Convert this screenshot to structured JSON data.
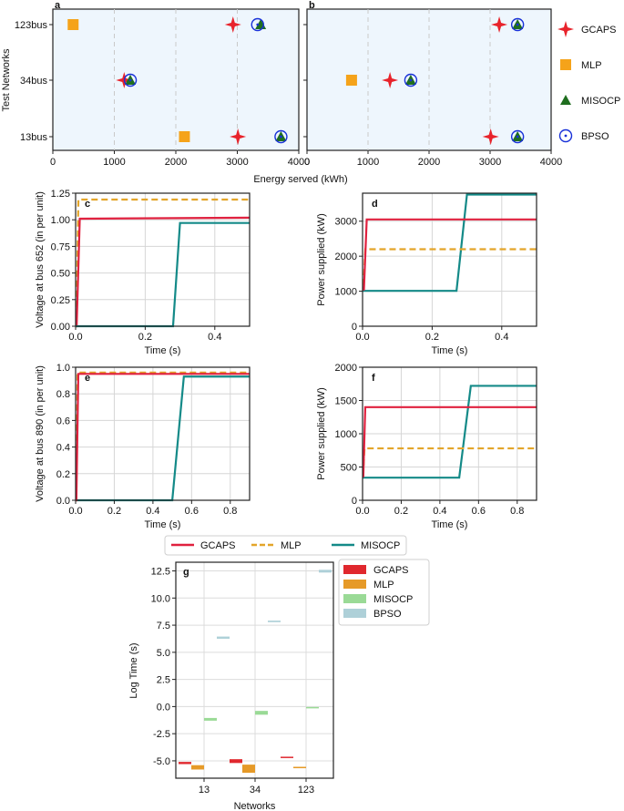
{
  "chart_data": [
    {
      "id": "a",
      "panel_label": "a",
      "type": "scatter",
      "title": "",
      "xlabel": "Energy served (kWh)",
      "ylabel": "Test Networks",
      "xlim": [
        0,
        4000
      ],
      "xticks": [
        "0",
        "1000",
        "2000",
        "3000",
        "4000"
      ],
      "categories": [
        "13bus",
        "34bus",
        "123bus"
      ],
      "series": [
        {
          "name": "GCAPS",
          "marker": "star4",
          "color": "#e8232b",
          "x": [
            3010,
            1160,
            2930
          ]
        },
        {
          "name": "MLP",
          "marker": "square",
          "color": "#f5a31a",
          "x": [
            2140,
            null,
            330
          ]
        },
        {
          "name": "MISOCP",
          "marker": "triangle",
          "color": "#1f6e1f",
          "x": [
            3710,
            1260,
            3380
          ]
        },
        {
          "name": "BPSO",
          "marker": "circle-dot",
          "color": "#1730d8",
          "x": [
            3710,
            1260,
            3330
          ]
        }
      ]
    },
    {
      "id": "b",
      "panel_label": "b",
      "type": "scatter",
      "title": "",
      "xlabel": "Energy served (kWh)",
      "xlim": [
        0,
        4000
      ],
      "xticks": [
        "0",
        "1000",
        "2000",
        "3000",
        "4000"
      ],
      "categories": [
        "13bus",
        "34bus",
        "123bus"
      ],
      "series": [
        {
          "name": "GCAPS",
          "marker": "star4",
          "color": "#e8232b",
          "x": [
            3010,
            1360,
            3150
          ]
        },
        {
          "name": "MLP",
          "marker": "square",
          "color": "#f5a31a",
          "x": [
            null,
            730,
            null
          ]
        },
        {
          "name": "MISOCP",
          "marker": "triangle",
          "color": "#1f6e1f",
          "x": [
            3450,
            1700,
            3450
          ]
        },
        {
          "name": "BPSO",
          "marker": "circle-dot",
          "color": "#1730d8",
          "x": [
            3450,
            1700,
            3450
          ]
        }
      ]
    },
    {
      "id": "c",
      "panel_label": "c",
      "type": "line",
      "xlabel": "Time (s)",
      "ylabel": "Voltage at bus 652 (in per unit)",
      "xlim": [
        0,
        0.5
      ],
      "ylim": [
        0,
        1.25
      ],
      "xticks": [
        0,
        0.2,
        0.4
      ],
      "xtick_labels": [
        "0.0",
        "0.2",
        "0.4"
      ],
      "yticks": [
        0,
        0.25,
        0.5,
        0.75,
        1.0,
        1.25
      ],
      "ytick_labels": [
        "0.00",
        "0.25",
        "0.50",
        "0.75",
        "1.00",
        "1.25"
      ],
      "series": [
        {
          "name": "MLP",
          "style": "dashed",
          "color": "#e3a52a",
          "x": [
            0,
            0.002,
            0.008,
            0.5
          ],
          "y": [
            0,
            0,
            1.19,
            1.19
          ]
        },
        {
          "name": "GCAPS",
          "style": "solid",
          "color": "#e0213f",
          "x": [
            0,
            0.003,
            0.012,
            0.5
          ],
          "y": [
            0,
            0,
            1.01,
            1.02
          ]
        },
        {
          "name": "MISOCP",
          "style": "solid",
          "color": "#148a88",
          "x": [
            0,
            0.28,
            0.3,
            0.5
          ],
          "y": [
            0,
            0,
            0.97,
            0.97
          ]
        }
      ]
    },
    {
      "id": "d",
      "panel_label": "d",
      "type": "line",
      "xlabel": "Time (s)",
      "ylabel": "Power supplied (kW)",
      "xlim": [
        0,
        0.5
      ],
      "ylim": [
        0,
        3800
      ],
      "xticks": [
        0,
        0.2,
        0.4
      ],
      "xtick_labels": [
        "0.0",
        "0.2",
        "0.4"
      ],
      "yticks": [
        0,
        1000,
        2000,
        3000
      ],
      "ytick_labels": [
        "0",
        "1000",
        "2000",
        "3000"
      ],
      "series": [
        {
          "name": "MISOCP",
          "style": "solid",
          "color": "#148a88",
          "x": [
            0,
            0.27,
            0.3,
            0.5
          ],
          "y": [
            1010,
            1010,
            3760,
            3760
          ]
        },
        {
          "name": "MLP",
          "style": "dashed",
          "color": "#e3a52a",
          "x": [
            0,
            0.003,
            0.008,
            0.5
          ],
          "y": [
            1200,
            1200,
            2200,
            2200
          ]
        },
        {
          "name": "GCAPS",
          "style": "solid",
          "color": "#e0213f",
          "x": [
            0,
            0.004,
            0.012,
            0.5
          ],
          "y": [
            1050,
            1050,
            3050,
            3050
          ]
        }
      ]
    },
    {
      "id": "e",
      "panel_label": "e",
      "type": "line",
      "xlabel": "Time (s)",
      "ylabel": "Voltage at bus 890 (in per unit)",
      "xlim": [
        0,
        0.9
      ],
      "ylim": [
        0,
        1.0
      ],
      "xticks": [
        0,
        0.2,
        0.4,
        0.6,
        0.8
      ],
      "xtick_labels": [
        "0.0",
        "0.2",
        "0.4",
        "0.6",
        "0.8"
      ],
      "yticks": [
        0,
        0.2,
        0.4,
        0.6,
        0.8,
        1.0
      ],
      "ytick_labels": [
        "0.0",
        "0.2",
        "0.4",
        "0.6",
        "0.8",
        "1.0"
      ],
      "series": [
        {
          "name": "MISOCP",
          "style": "solid",
          "color": "#148a88",
          "x": [
            0,
            0.5,
            0.56,
            0.9
          ],
          "y": [
            0,
            0,
            0.93,
            0.93
          ]
        },
        {
          "name": "MLP",
          "style": "dashed",
          "color": "#e3a52a",
          "x": [
            0,
            0.003,
            0.01,
            0.9
          ],
          "y": [
            0,
            0,
            0.96,
            0.96
          ]
        },
        {
          "name": "GCAPS",
          "style": "solid",
          "color": "#e0213f",
          "x": [
            0,
            0.004,
            0.014,
            0.9
          ],
          "y": [
            0,
            0,
            0.95,
            0.95
          ]
        }
      ]
    },
    {
      "id": "f",
      "panel_label": "f",
      "type": "line",
      "xlabel": "Time (s)",
      "ylabel": "Power supplied (kW)",
      "xlim": [
        0,
        0.9
      ],
      "ylim": [
        0,
        2000
      ],
      "xticks": [
        0,
        0.2,
        0.4,
        0.6,
        0.8
      ],
      "xtick_labels": [
        "0.0",
        "0.2",
        "0.4",
        "0.6",
        "0.8"
      ],
      "yticks": [
        0,
        500,
        1000,
        1500,
        2000
      ],
      "ytick_labels": [
        "0",
        "500",
        "1000",
        "1500",
        "2000"
      ],
      "series": [
        {
          "name": "MISOCP",
          "style": "solid",
          "color": "#148a88",
          "x": [
            0,
            0.5,
            0.56,
            0.9
          ],
          "y": [
            340,
            340,
            1720,
            1720
          ]
        },
        {
          "name": "MLP",
          "style": "dashed",
          "color": "#e3a52a",
          "x": [
            0,
            0.003,
            0.01,
            0.9
          ],
          "y": [
            380,
            380,
            780,
            780
          ]
        },
        {
          "name": "GCAPS",
          "style": "solid",
          "color": "#e0213f",
          "x": [
            0,
            0.004,
            0.014,
            0.9
          ],
          "y": [
            360,
            360,
            1400,
            1400
          ]
        }
      ]
    },
    {
      "id": "g",
      "panel_label": "g",
      "type": "box",
      "xlabel": "Networks",
      "ylabel": "Log Time (s)",
      "categories": [
        "13",
        "34",
        "123"
      ],
      "ylim": [
        -6.6,
        13.3
      ],
      "yticks": [
        -5.0,
        -2.5,
        0.0,
        2.5,
        5.0,
        7.5,
        10.0,
        12.5
      ],
      "ytick_labels": [
        "-5.0",
        "-2.5",
        "0.0",
        "2.5",
        "5.0",
        "7.5",
        "10.0",
        "12.5"
      ],
      "series": [
        {
          "name": "GCAPS",
          "color": "#e0282e",
          "values": [
            [
              -5.3,
              -5.1
            ],
            [
              -5.2,
              -4.85
            ],
            [
              -4.72,
              -4.62
            ]
          ]
        },
        {
          "name": "MLP",
          "color": "#e69a28",
          "values": [
            [
              -5.8,
              -5.4
            ],
            [
              -6.1,
              -5.35
            ],
            [
              -5.68,
              -5.55
            ]
          ]
        },
        {
          "name": "MISOCP",
          "color": "#9ada96",
          "values": [
            [
              -1.3,
              -1.05
            ],
            [
              -0.75,
              -0.4
            ],
            [
              -0.12,
              -0.04
            ]
          ]
        },
        {
          "name": "BPSO",
          "color": "#aed0d8",
          "values": [
            [
              6.25,
              6.45
            ],
            [
              7.78,
              7.92
            ],
            [
              12.35,
              12.6
            ]
          ]
        }
      ]
    }
  ],
  "legend_top": [
    {
      "name": "GCAPS",
      "color": "#e8232b"
    },
    {
      "name": "MLP",
      "color": "#f5a31a"
    },
    {
      "name": "MISOCP",
      "color": "#1f6e1f"
    },
    {
      "name": "BPSO",
      "color": "#1730d8"
    }
  ],
  "legend_lines": [
    {
      "name": "GCAPS",
      "color": "#e0213f",
      "style": "solid"
    },
    {
      "name": "MLP",
      "color": "#e3a52a",
      "style": "dashed"
    },
    {
      "name": "MISOCP",
      "color": "#148a88",
      "style": "solid"
    }
  ]
}
